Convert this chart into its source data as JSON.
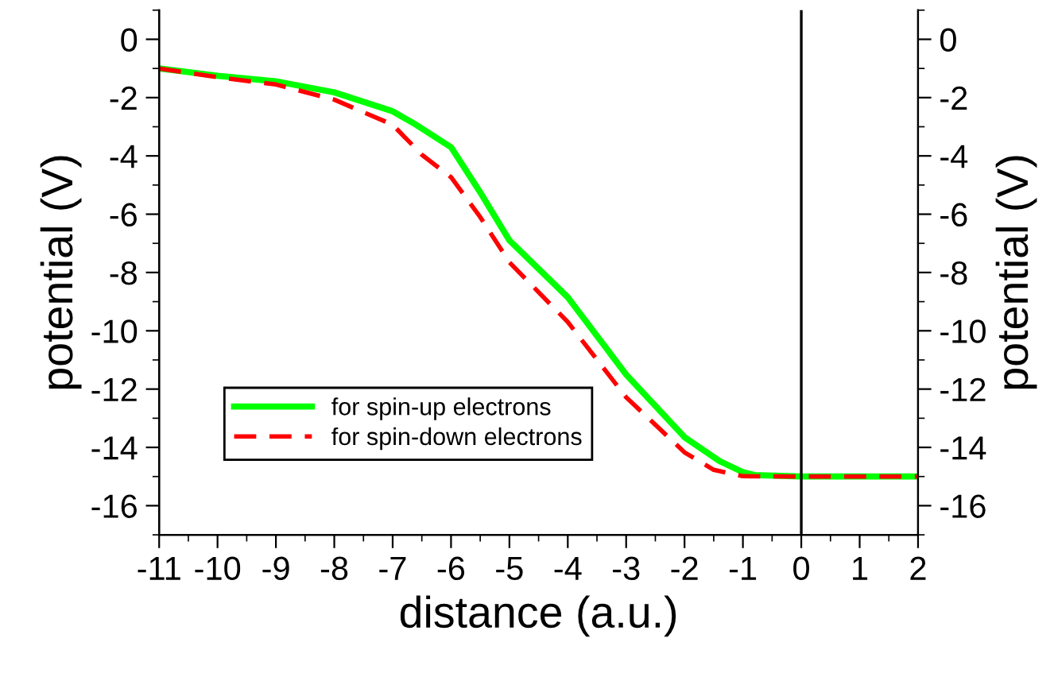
{
  "chart_data": {
    "type": "line",
    "xlabel": "distance (a.u.)",
    "ylabel": "potential (V)",
    "y2label": "potential (V)",
    "xlim": [
      -11,
      2
    ],
    "xticks": [
      -11,
      -10,
      -9,
      -8,
      -7,
      -6,
      -5,
      -4,
      -3,
      -2,
      -1,
      0,
      1,
      2
    ],
    "ylim": [
      -17,
      1
    ],
    "yticks": [
      -16,
      -14,
      -12,
      -10,
      -8,
      -6,
      -4,
      -2,
      0
    ],
    "y2lim": [
      -17,
      1
    ],
    "y2ticks": [
      -16,
      -14,
      -12,
      -10,
      -8,
      -6,
      -4,
      -2,
      0
    ],
    "grid": false,
    "legend": "bottom left",
    "marker": "none",
    "ref_lines": [
      {
        "axis": "x",
        "value": 0,
        "color": "#000000",
        "line_style": "solid"
      }
    ],
    "series": [
      {
        "name": "for spin-up electrons",
        "color": "#00ff00",
        "line_style": "solid",
        "x": [
          -11,
          -10,
          -9,
          -8,
          -7,
          -6.6,
          -6,
          -5.5,
          -5,
          -4,
          -3,
          -2,
          -1.4,
          -1,
          -0.8,
          0,
          1,
          2
        ],
        "values": [
          -1.0,
          -1.25,
          -1.44,
          -1.82,
          -2.47,
          -2.93,
          -3.7,
          -5.25,
          -6.9,
          -8.85,
          -11.5,
          -13.65,
          -14.47,
          -14.85,
          -14.95,
          -15,
          -15,
          -15
        ]
      },
      {
        "name": "for spin-down electrons",
        "color": "#ff0000",
        "line_style": "dashed",
        "x": [
          -11,
          -10,
          -9,
          -8,
          -7,
          -6.5,
          -6,
          -5.5,
          -5,
          -4,
          -3,
          -2,
          -1.5,
          -1,
          0,
          1,
          2
        ],
        "values": [
          -1.0,
          -1.3,
          -1.55,
          -2.07,
          -2.93,
          -3.96,
          -4.73,
          -6.1,
          -7.65,
          -9.7,
          -12.28,
          -14.17,
          -14.77,
          -14.99,
          -15,
          -15,
          -15
        ]
      }
    ]
  }
}
